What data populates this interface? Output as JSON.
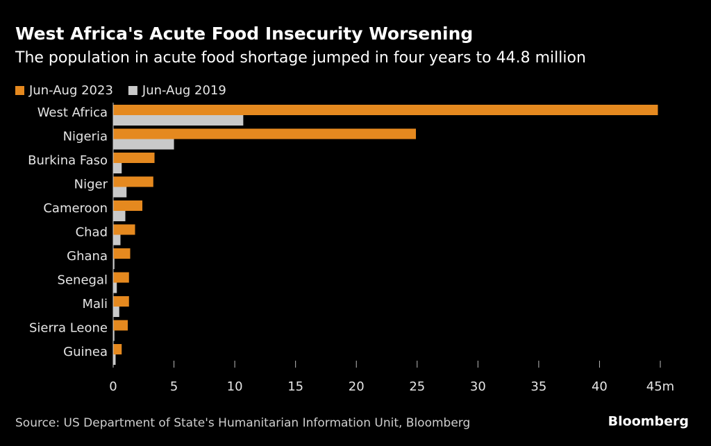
{
  "chart_data": {
    "type": "bar",
    "orientation": "horizontal",
    "title": "West Africa's Acute Food Insecurity Worsening",
    "subtitle": "The population in acute food shortage jumped in four years to 44.8 million",
    "categories": [
      "West Africa",
      "Nigeria",
      "Burkina Faso",
      "Niger",
      "Cameroon",
      "Chad",
      "Ghana",
      "Senegal",
      "Mali",
      "Sierra Leone",
      "Guinea"
    ],
    "series": [
      {
        "name": "Jun-Aug 2023",
        "color": "#e5891f",
        "values": [
          44.8,
          24.9,
          3.4,
          3.3,
          2.4,
          1.8,
          1.4,
          1.3,
          1.3,
          1.2,
          0.7
        ]
      },
      {
        "name": "Jun-Aug 2019",
        "color": "#c9c9c9",
        "values": [
          10.7,
          5.0,
          0.7,
          1.1,
          1.0,
          0.6,
          0.1,
          0.3,
          0.5,
          0.1,
          0.2
        ]
      }
    ],
    "xlim": [
      0,
      45
    ],
    "xticks": [
      0,
      5,
      10,
      15,
      20,
      25,
      30,
      35,
      40,
      {
        "value": 45,
        "label": "45m"
      }
    ],
    "legend": "top-left",
    "source": "Source: US Department of State's Humanitarian Information Unit, Bloomberg",
    "logo": "Bloomberg"
  }
}
